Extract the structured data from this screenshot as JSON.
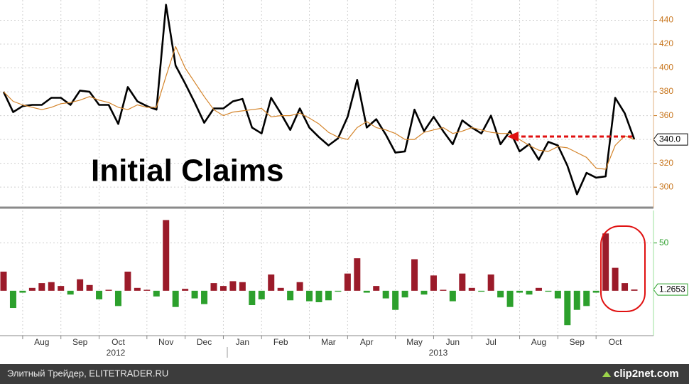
{
  "chart_data": [
    {
      "type": "line",
      "title": "Initial Claims",
      "ylim": [
        284,
        457
      ],
      "yticks": [
        300,
        320,
        340,
        360,
        380,
        400,
        420,
        440
      ],
      "grid": true,
      "tick_color": "#c8761e",
      "series": [
        {
          "color": "#000000",
          "values": [
            380,
            363,
            368,
            369,
            369,
            375,
            375,
            369,
            381,
            380,
            369,
            369,
            353,
            384,
            372,
            368,
            365,
            453,
            402,
            387,
            371,
            354,
            366,
            366,
            372,
            374,
            350,
            345,
            375,
            362,
            348,
            366,
            350,
            342,
            335,
            341,
            359,
            390,
            350,
            357,
            344,
            329,
            330,
            365,
            347,
            359,
            347,
            336,
            356,
            350,
            345,
            360,
            336,
            347,
            330,
            336,
            323,
            338,
            335,
            318,
            294,
            312,
            308,
            309,
            375,
            362,
            340
          ],
          "value_labels": [
            null,
            null,
            null,
            null,
            null,
            null,
            null,
            null,
            null,
            null,
            null,
            null,
            null,
            null,
            null,
            null,
            null,
            null,
            null,
            null,
            null,
            null,
            null,
            null,
            null,
            null,
            null,
            null,
            null,
            null,
            null,
            null,
            null,
            null,
            null,
            null,
            null,
            null,
            null,
            null,
            null,
            null,
            null,
            null,
            null,
            null,
            null,
            null,
            null,
            null,
            null,
            null,
            null,
            null,
            null,
            null,
            null,
            null,
            null,
            null,
            null,
            null,
            null,
            null,
            null,
            null,
            "340.0"
          ]
        },
        {
          "color": "#d4842a",
          "values": [
            380,
            372,
            369,
            367,
            365,
            367,
            370,
            371,
            373,
            376,
            373,
            371,
            367,
            365,
            369,
            367,
            367,
            393,
            418,
            400,
            388,
            376,
            365,
            360,
            363,
            364,
            365,
            366,
            359,
            360,
            360,
            362,
            358,
            353,
            346,
            342,
            340,
            350,
            355,
            350,
            348,
            345,
            340,
            340,
            346,
            348,
            350,
            345,
            347,
            350,
            348,
            346,
            345,
            345,
            340,
            335,
            331,
            330,
            334,
            333,
            329,
            325,
            316,
            315,
            335,
            343,
            340
          ]
        }
      ]
    },
    {
      "type": "bar",
      "categories": [
        null,
        null,
        null,
        null,
        "Aug",
        null,
        null,
        null,
        "Sep",
        null,
        null,
        null,
        "Oct",
        null,
        null,
        null,
        null,
        "Nov",
        null,
        null,
        null,
        "Dec",
        null,
        null,
        null,
        "Jan",
        null,
        null,
        null,
        "Feb",
        null,
        null,
        null,
        null,
        "Mar",
        null,
        null,
        null,
        "Apr",
        null,
        null,
        null,
        null,
        "May",
        null,
        null,
        null,
        "Jun",
        null,
        null,
        null,
        "Jul",
        null,
        null,
        null,
        null,
        "Aug",
        null,
        null,
        null,
        "Sep",
        null,
        null,
        null,
        "Oct",
        null,
        null
      ],
      "x_group_labels": [
        "2012",
        "2013"
      ],
      "ylim": [
        -47,
        84
      ],
      "yticks": [
        50
      ],
      "grid": true,
      "tick_color": "#2ea02e",
      "color_up": "#9b1b2a",
      "color_down": "#2ca02c",
      "values": [
        20,
        -18,
        -2,
        3,
        8,
        9,
        5,
        -4,
        12,
        6,
        -9,
        1,
        -16,
        20,
        3,
        1,
        -6,
        74,
        -17,
        2,
        -8,
        -14,
        8,
        5,
        10,
        9,
        -15,
        -9,
        17,
        3,
        -10,
        9,
        -11,
        -12,
        -10,
        -1,
        18,
        34,
        -2,
        5,
        -8,
        -20,
        -7,
        33,
        -4,
        16,
        1,
        -11,
        18,
        3,
        -1,
        17,
        -7,
        -17,
        -2,
        -4,
        3,
        -1,
        -8,
        -36,
        -20,
        -16,
        -2,
        60,
        24,
        8,
        1.2653
      ],
      "value_labels": [
        null,
        null,
        null,
        null,
        null,
        null,
        null,
        null,
        null,
        null,
        null,
        null,
        null,
        null,
        null,
        null,
        null,
        null,
        null,
        null,
        null,
        null,
        null,
        null,
        null,
        null,
        null,
        null,
        null,
        null,
        null,
        null,
        null,
        null,
        null,
        null,
        null,
        null,
        null,
        null,
        null,
        null,
        null,
        null,
        null,
        null,
        null,
        null,
        null,
        null,
        null,
        null,
        null,
        null,
        null,
        null,
        null,
        null,
        null,
        null,
        null,
        null,
        null,
        null,
        null,
        null,
        "1.2653"
      ]
    }
  ],
  "footer": {
    "source": "Элитный Трейдер, ELITETRADER.RU",
    "watermark": "clip2net.com"
  }
}
